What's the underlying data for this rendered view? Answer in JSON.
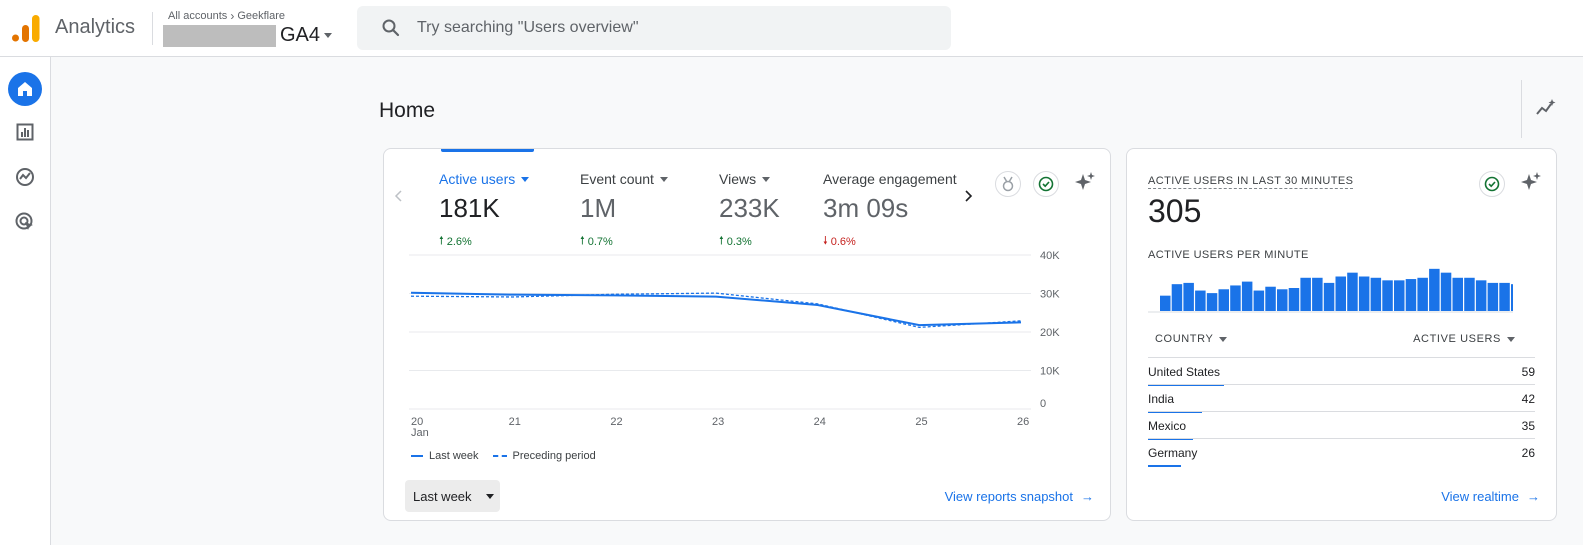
{
  "app": {
    "name": "Analytics"
  },
  "breadcrumb": {
    "accounts": "All accounts",
    "account": "Geekflare"
  },
  "property": {
    "name": "GA4"
  },
  "search": {
    "placeholder": "Try searching \"Users overview\""
  },
  "page": {
    "title": "Home"
  },
  "colors": {
    "accent": "#1a73e8",
    "up": "#137333",
    "down": "#c5221f"
  },
  "rail": {
    "items": [
      {
        "icon": "home-icon",
        "active": true
      },
      {
        "icon": "reports-icon",
        "active": false
      },
      {
        "icon": "explore-icon",
        "active": false
      },
      {
        "icon": "advertising-icon",
        "active": false
      }
    ]
  },
  "overview": {
    "metrics": [
      {
        "label": "Active users",
        "value": "181K",
        "delta": "2.6%",
        "direction": "up"
      },
      {
        "label": "Event count",
        "value": "1M",
        "delta": "0.7%",
        "direction": "up"
      },
      {
        "label": "Views",
        "value": "233K",
        "delta": "0.3%",
        "direction": "up"
      },
      {
        "label": "Average engagement",
        "value": "3m 09s",
        "delta": "0.6%",
        "direction": "down"
      }
    ],
    "legend": {
      "current": "Last week",
      "previous": "Preceding period"
    },
    "date_range": "Last week",
    "link": "View reports snapshot"
  },
  "chart_data": {
    "type": "line",
    "x": [
      "20",
      "21",
      "22",
      "23",
      "24",
      "25",
      "26"
    ],
    "x_sublabel": "Jan",
    "y_ticks": [
      "40K",
      "30K",
      "20K",
      "10K",
      "0"
    ],
    "ylim": [
      0,
      40000
    ],
    "grid": true,
    "legend_position": "bottom-left",
    "series": [
      {
        "name": "Last week",
        "style": "solid",
        "values": [
          30200,
          29700,
          29500,
          29200,
          27000,
          21800,
          22500
        ]
      },
      {
        "name": "Preceding period",
        "style": "dashed",
        "values": [
          29300,
          29100,
          29800,
          30100,
          27300,
          21200,
          22900
        ]
      }
    ]
  },
  "realtime": {
    "title": "ACTIVE USERS IN LAST 30 MINUTES",
    "value": "305",
    "per_minute_label": "ACTIVE USERS PER MINUTE",
    "per_minute": [
      12,
      21,
      22,
      16,
      14,
      17,
      20,
      23,
      16,
      19,
      17,
      18,
      26,
      26,
      22,
      27,
      30,
      27,
      26,
      24,
      24,
      25,
      26,
      33,
      30,
      26,
      26,
      24,
      22,
      22,
      21
    ],
    "table": {
      "col_country": "COUNTRY",
      "col_users": "ACTIVE USERS",
      "rows": [
        {
          "country": "United States",
          "users": "59",
          "share": 0.59
        },
        {
          "country": "India",
          "users": "42",
          "share": 0.42
        },
        {
          "country": "Mexico",
          "users": "35",
          "share": 0.35
        },
        {
          "country": "Germany",
          "users": "26",
          "share": 0.26
        }
      ]
    },
    "link": "View realtime"
  }
}
